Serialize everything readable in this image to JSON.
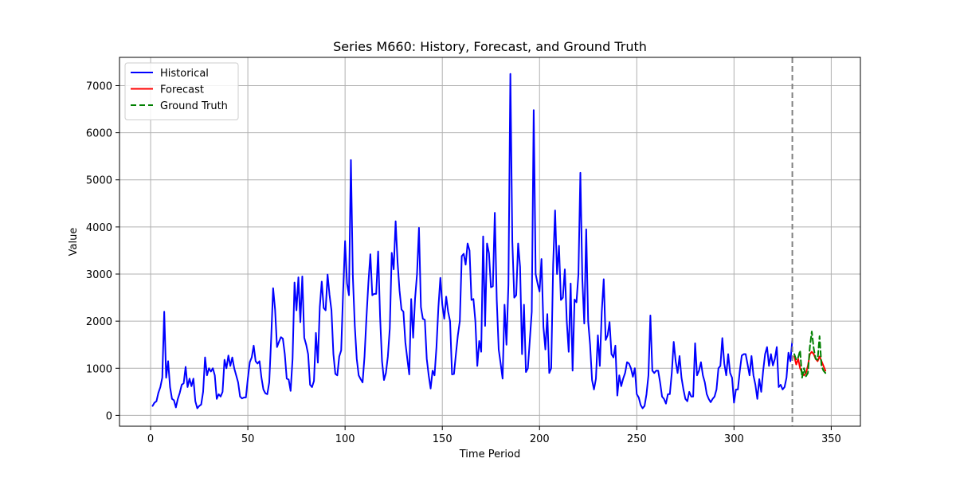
{
  "chart_data": {
    "type": "line",
    "title": "Series M660: History, Forecast, and Ground Truth",
    "xlabel": "Time Period",
    "ylabel": "Value",
    "xlim": [
      -16,
      365
    ],
    "ylim": [
      -230,
      7600
    ],
    "xticks": [
      0,
      50,
      100,
      150,
      200,
      250,
      300,
      350
    ],
    "yticks": [
      0,
      1000,
      2000,
      3000,
      4000,
      5000,
      6000,
      7000
    ],
    "grid": true,
    "legend_position": "top-left",
    "forecast_start_x": 330,
    "series": [
      {
        "name": "Historical",
        "color": "#0000ff",
        "dashed": false,
        "x_start": 1,
        "values": [
          200,
          270,
          300,
          480,
          600,
          800,
          2200,
          800,
          1150,
          600,
          350,
          320,
          170,
          350,
          480,
          650,
          680,
          1030,
          600,
          780,
          620,
          780,
          300,
          150,
          200,
          230,
          500,
          1230,
          850,
          1000,
          930,
          1000,
          850,
          350,
          450,
          400,
          500,
          1180,
          1000,
          1270,
          1050,
          1230,
          1000,
          850,
          700,
          400,
          360,
          380,
          380,
          780,
          1130,
          1230,
          1480,
          1150,
          1100,
          1150,
          800,
          550,
          470,
          450,
          700,
          1630,
          2700,
          2250,
          1450,
          1560,
          1660,
          1630,
          1300,
          780,
          760,
          520,
          1200,
          2820,
          2230,
          2930,
          1980,
          2950,
          1650,
          1500,
          1300,
          650,
          600,
          730,
          1750,
          1120,
          2300,
          2840,
          2280,
          2230,
          2990,
          2560,
          2230,
          1300,
          880,
          850,
          1250,
          1380,
          2630,
          3700,
          2800,
          2550,
          5420,
          2950,
          1900,
          1200,
          850,
          770,
          700,
          1250,
          2080,
          2820,
          3420,
          2550,
          2580,
          2580,
          3480,
          2100,
          1150,
          750,
          900,
          1250,
          1850,
          3450,
          3100,
          4120,
          3250,
          2650,
          2250,
          2200,
          1550,
          1200,
          870,
          2470,
          1650,
          2480,
          3000,
          3980,
          2300,
          2050,
          2030,
          1200,
          850,
          570,
          950,
          850,
          1450,
          2300,
          2920,
          2350,
          2050,
          2520,
          2200,
          2000,
          870,
          880,
          1300,
          1700,
          2000,
          3380,
          3430,
          3200,
          3650,
          3500,
          2450,
          2470,
          2000,
          1050,
          1580,
          1350,
          3800,
          1900,
          3650,
          3440,
          2720,
          2740,
          4300,
          2450,
          1400,
          1100,
          780,
          2350,
          1500,
          2780,
          7250,
          3700,
          2500,
          2550,
          3650,
          3150,
          1300,
          2350,
          920,
          1000,
          1600,
          2200,
          6480,
          3000,
          2800,
          2630,
          3320,
          1880,
          1400,
          2150,
          900,
          1000,
          3200,
          4350,
          3000,
          3600,
          2450,
          2500,
          3100,
          2000,
          1350,
          2800,
          950,
          2460,
          2400,
          3000,
          5150,
          2900,
          1950,
          3950,
          2000,
          1500,
          750,
          550,
          780,
          1700,
          1050,
          2200,
          2890,
          1600,
          1700,
          1980,
          1300,
          1230,
          1480,
          420,
          850,
          620,
          780,
          900,
          1130,
          1100,
          1000,
          820,
          1000,
          450,
          380,
          220,
          150,
          200,
          450,
          850,
          2120,
          950,
          900,
          950,
          950,
          700,
          400,
          350,
          250,
          450,
          450,
          900,
          1560,
          1150,
          900,
          1260,
          800,
          550,
          350,
          300,
          500,
          400,
          400,
          1530,
          850,
          950,
          1130,
          850,
          700,
          450,
          350,
          280,
          350,
          400,
          550,
          1000,
          1050,
          1640,
          1100,
          850,
          1300,
          900,
          800,
          270,
          550,
          550,
          950,
          1270,
          1300,
          1300,
          1080,
          850,
          1260,
          850,
          650,
          350,
          770,
          500,
          950,
          1300,
          1450,
          1050,
          1300,
          1060,
          1200,
          1450,
          600,
          650,
          550,
          600,
          800,
          1330,
          1150,
          1600
        ]
      },
      {
        "name": "Forecast",
        "color": "#ff0000",
        "dashed": false,
        "x_start": 331,
        "values": [
          1250,
          1080,
          1200,
          1000,
          900,
          850,
          900,
          1050,
          1300,
          1350,
          1300,
          1200,
          1150,
          1250,
          1150,
          1050,
          950
        ]
      },
      {
        "name": "Ground Truth",
        "color": "#008000",
        "dashed": true,
        "x_start": 331,
        "values": [
          1300,
          1180,
          1230,
          1380,
          800,
          1000,
          830,
          900,
          1450,
          1780,
          1420,
          1200,
          1180,
          1680,
          1050,
          950,
          900
        ]
      }
    ]
  }
}
